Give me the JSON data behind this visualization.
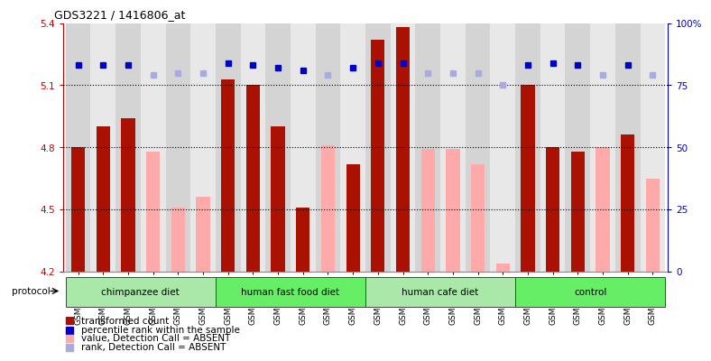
{
  "title": "GDS3221 / 1416806_at",
  "samples": [
    "GSM144707",
    "GSM144708",
    "GSM144709",
    "GSM144710",
    "GSM144711",
    "GSM144712",
    "GSM144713",
    "GSM144714",
    "GSM144715",
    "GSM144716",
    "GSM144717",
    "GSM144718",
    "GSM144719",
    "GSM144720",
    "GSM144721",
    "GSM144722",
    "GSM144723",
    "GSM144724",
    "GSM144725",
    "GSM144726",
    "GSM144727",
    "GSM144728",
    "GSM144729",
    "GSM144730"
  ],
  "values": [
    4.8,
    4.9,
    4.94,
    null,
    null,
    null,
    5.13,
    5.1,
    4.9,
    4.51,
    null,
    4.72,
    5.32,
    5.38,
    null,
    null,
    null,
    null,
    5.1,
    4.8,
    4.78,
    null,
    4.86,
    null
  ],
  "values_absent": [
    null,
    null,
    null,
    4.78,
    4.51,
    4.56,
    null,
    null,
    null,
    null,
    4.81,
    null,
    null,
    null,
    4.79,
    4.79,
    4.72,
    4.24,
    null,
    null,
    null,
    4.8,
    null,
    4.65
  ],
  "ranks_present": [
    83,
    83,
    83,
    null,
    null,
    null,
    84,
    83,
    82,
    81,
    null,
    82,
    84,
    84,
    null,
    null,
    null,
    null,
    83,
    84,
    83,
    null,
    83,
    null
  ],
  "ranks_absent": [
    null,
    null,
    null,
    79,
    80,
    80,
    null,
    null,
    null,
    null,
    79,
    null,
    null,
    null,
    80,
    80,
    80,
    75,
    null,
    null,
    null,
    79,
    null,
    79
  ],
  "groups": [
    {
      "label": "chimpanzee diet",
      "start": 0,
      "end": 5
    },
    {
      "label": "human fast food diet",
      "start": 6,
      "end": 11
    },
    {
      "label": "human cafe diet",
      "start": 12,
      "end": 17
    },
    {
      "label": "control",
      "start": 18,
      "end": 23
    }
  ],
  "group_colors": [
    "#aae8aa",
    "#66ee66",
    "#aae8aa",
    "#66ee66"
  ],
  "ylim_left": [
    4.2,
    5.4
  ],
  "ylim_right": [
    0,
    100
  ],
  "yticks_left": [
    4.2,
    4.5,
    4.8,
    5.1,
    5.4
  ],
  "yticks_right": [
    0,
    25,
    50,
    75,
    100
  ],
  "bar_color_present": "#aa1100",
  "bar_color_absent": "#ffaaaa",
  "rank_color_present": "#0000cc",
  "rank_color_absent": "#aaaadd",
  "col_bg_even": "#d4d4d4",
  "col_bg_odd": "#e8e8e8",
  "tick_color_left": "#cc0000",
  "tick_color_right": "#0000bb",
  "bar_width": 0.55,
  "dotted_lines": [
    4.5,
    4.8,
    5.1
  ]
}
